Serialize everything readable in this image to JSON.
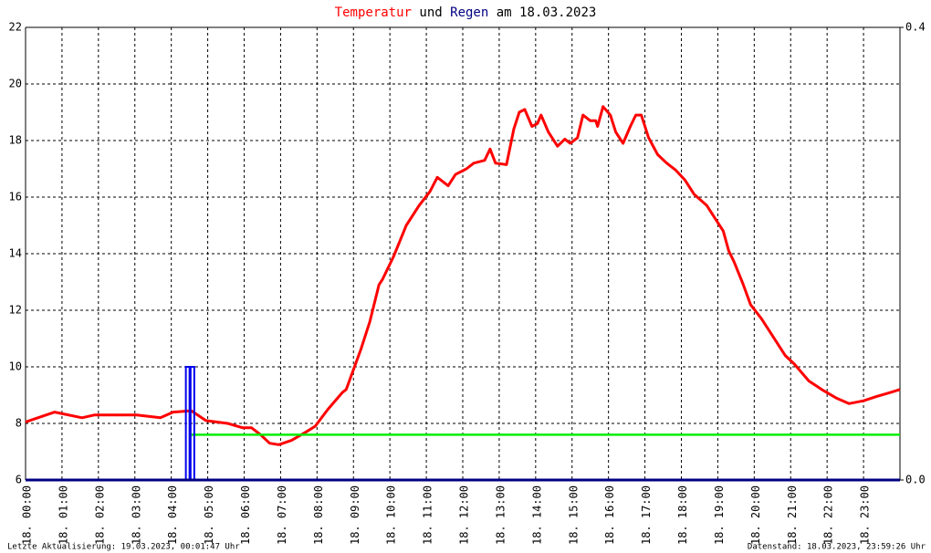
{
  "chart_data": {
    "type": "line",
    "title_parts": [
      {
        "text": "Temperatur",
        "color": "#ff0000"
      },
      {
        "text": "und",
        "color": "#000000"
      },
      {
        "text": "Regen",
        "color": "#000080"
      },
      {
        "text": "am 18.03.2023",
        "color": "#000000"
      }
    ],
    "xlim": [
      0,
      24
    ],
    "xticks": [
      {
        "value": 0,
        "label": "18. 00:00"
      },
      {
        "value": 1,
        "label": "18. 01:00"
      },
      {
        "value": 2,
        "label": "18. 02:00"
      },
      {
        "value": 3,
        "label": "18. 03:00"
      },
      {
        "value": 4,
        "label": "18. 04:00"
      },
      {
        "value": 5,
        "label": "18. 05:00"
      },
      {
        "value": 6,
        "label": "18. 06:00"
      },
      {
        "value": 7,
        "label": "18. 07:00"
      },
      {
        "value": 8,
        "label": "18. 08:00"
      },
      {
        "value": 9,
        "label": "18. 09:00"
      },
      {
        "value": 10,
        "label": "18. 10:00"
      },
      {
        "value": 11,
        "label": "18. 11:00"
      },
      {
        "value": 12,
        "label": "18. 12:00"
      },
      {
        "value": 13,
        "label": "18. 13:00"
      },
      {
        "value": 14,
        "label": "18. 14:00"
      },
      {
        "value": 15,
        "label": "18. 15:00"
      },
      {
        "value": 16,
        "label": "18. 16:00"
      },
      {
        "value": 17,
        "label": "18. 17:00"
      },
      {
        "value": 18,
        "label": "18. 18:00"
      },
      {
        "value": 19,
        "label": "18. 19:00"
      },
      {
        "value": 20,
        "label": "18. 20:00"
      },
      {
        "value": 21,
        "label": "18. 21:00"
      },
      {
        "value": 22,
        "label": "18. 22:00"
      },
      {
        "value": 23,
        "label": "18. 23:00"
      }
    ],
    "ylim": [
      6,
      22
    ],
    "yticks": [
      6,
      8,
      10,
      12,
      14,
      16,
      18,
      20,
      22
    ],
    "y2lim": [
      0,
      0.4
    ],
    "y2ticks": [
      {
        "value": 0,
        "label": "0.0"
      },
      {
        "value": 0.4,
        "label": "0.4"
      }
    ],
    "grid": true,
    "series": [
      {
        "color": "#ff0000",
        "kind": "line",
        "x": [
          0,
          0.8,
          1.55,
          1.9,
          3.05,
          3.7,
          4.05,
          4.55,
          4.95,
          5.55,
          5.95,
          6.2,
          6.45,
          6.7,
          6.95,
          7.3,
          7.7,
          7.95,
          8.3,
          8.7,
          8.8,
          9.2,
          9.45,
          9.7,
          9.8,
          10.1,
          10.45,
          10.8,
          11.1,
          11.3,
          11.6,
          11.8,
          12.1,
          12.3,
          12.6,
          12.75,
          12.9,
          13.2,
          13.4,
          13.55,
          13.7,
          13.9,
          14.05,
          14.15,
          14.35,
          14.6,
          14.8,
          14.95,
          15.15,
          15.3,
          15.5,
          15.65,
          15.7,
          15.85,
          16.05,
          16.2,
          16.4,
          16.6,
          16.75,
          16.9,
          17.1,
          17.35,
          17.6,
          17.85,
          18.1,
          18.35,
          18.7,
          18.95,
          19.15,
          19.3,
          19.45,
          19.7,
          19.9,
          20.2,
          20.6,
          20.85,
          21.1,
          21.5,
          21.85,
          22.25,
          22.6,
          23.0,
          23.35,
          23.75,
          24
        ],
        "values": [
          8.05,
          8.4,
          8.2,
          8.3,
          8.3,
          8.2,
          8.4,
          8.45,
          8.1,
          8.0,
          7.85,
          7.85,
          7.6,
          7.3,
          7.25,
          7.4,
          7.7,
          7.9,
          8.5,
          9.1,
          9.2,
          10.6,
          11.6,
          12.9,
          13.1,
          13.9,
          15.0,
          15.7,
          16.2,
          16.7,
          16.4,
          16.8,
          17.0,
          17.2,
          17.3,
          17.7,
          17.2,
          17.15,
          18.4,
          19.0,
          19.1,
          18.5,
          18.6,
          18.9,
          18.3,
          17.8,
          18.05,
          17.9,
          18.1,
          18.9,
          18.7,
          18.7,
          18.5,
          19.2,
          18.9,
          18.3,
          17.9,
          18.5,
          18.9,
          18.9,
          18.1,
          17.5,
          17.2,
          16.95,
          16.6,
          16.1,
          15.7,
          15.2,
          14.8,
          14.1,
          13.7,
          12.9,
          12.2,
          11.7,
          10.9,
          10.4,
          10.1,
          9.5,
          9.2,
          8.9,
          8.7,
          8.8,
          8.95,
          9.1,
          9.2
        ]
      },
      {
        "color": "#00ee00",
        "kind": "line",
        "x": [
          4.55,
          24
        ],
        "values": [
          7.6,
          7.6
        ]
      },
      {
        "color": "#0000ee",
        "kind": "bar",
        "axis": "y2",
        "x": [
          4.4,
          4.53
        ],
        "values": [
          0.1,
          0.1
        ]
      }
    ],
    "footer_left": "Letzte Aktualisierung: 19.03.2023, 00:01:47 Uhr",
    "footer_right": "Datenstand: 18.03.2023, 23:59:26 Uhr"
  }
}
